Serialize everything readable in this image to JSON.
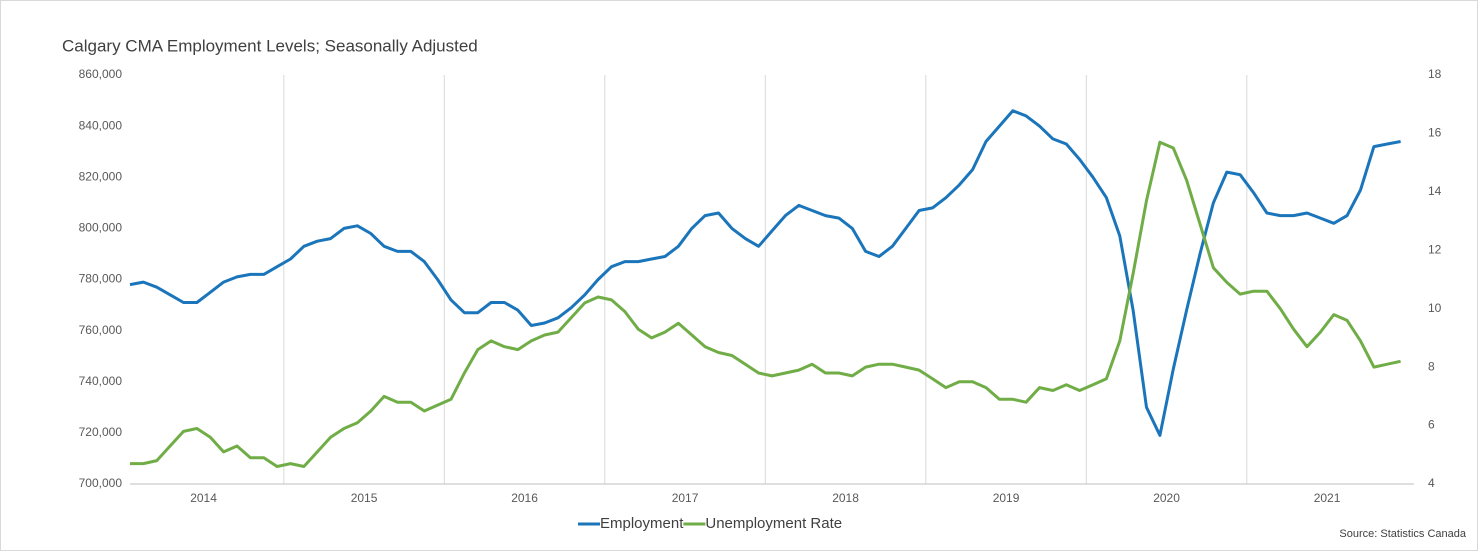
{
  "chart_data": {
    "type": "line",
    "title": "Calgary CMA Employment Levels; Seasonally Adjusted",
    "source": "Source: Statistics Canada",
    "categories": [
      "2014",
      null,
      null,
      null,
      null,
      null,
      null,
      null,
      null,
      null,
      null,
      null,
      "2015",
      null,
      null,
      null,
      null,
      null,
      null,
      null,
      null,
      null,
      null,
      null,
      "2016",
      null,
      null,
      null,
      null,
      null,
      null,
      null,
      null,
      null,
      null,
      null,
      "2017",
      null,
      null,
      null,
      null,
      null,
      null,
      null,
      null,
      null,
      null,
      null,
      "2018",
      null,
      null,
      null,
      null,
      null,
      null,
      null,
      null,
      null,
      null,
      null,
      "2019",
      null,
      null,
      null,
      null,
      null,
      null,
      null,
      null,
      null,
      null,
      null,
      "2020",
      null,
      null,
      null,
      null,
      null,
      null,
      null,
      null,
      null,
      null,
      null,
      "2021",
      null,
      null,
      null,
      null,
      null,
      null,
      null,
      null,
      null,
      null,
      null
    ],
    "series": [
      {
        "name": "Employment",
        "color": "#1b75bb",
        "values": [
          778000,
          779000,
          777000,
          774000,
          771000,
          771000,
          775000,
          779000,
          781000,
          782000,
          782000,
          785000,
          788000,
          793000,
          795000,
          796000,
          800000,
          801000,
          798000,
          793000,
          791000,
          791000,
          787000,
          780000,
          772000,
          767000,
          767000,
          771000,
          771000,
          768000,
          762000,
          763000,
          765000,
          769000,
          774000,
          780000,
          785000,
          787000,
          787000,
          788000,
          789000,
          793000,
          800000,
          805000,
          806000,
          800000,
          796000,
          793000,
          799000,
          805000,
          809000,
          807000,
          805000,
          804000,
          800000,
          791000,
          789000,
          793000,
          800000,
          807000,
          808000,
          812000,
          817000,
          823000,
          834000,
          840000,
          846000,
          844000,
          840000,
          835000,
          833000,
          827000,
          820000,
          812000,
          797000,
          768000,
          730000,
          719000,
          745000,
          768000,
          790000,
          810000,
          822000,
          821000,
          814000,
          806000,
          805000,
          805000,
          806000,
          804000,
          802000,
          805000,
          815000,
          832000,
          833000,
          834000
        ]
      },
      {
        "name": "Unemployment Rate",
        "color": "#70ad47",
        "axis": "y2",
        "values": [
          4.7,
          4.7,
          4.8,
          5.3,
          5.8,
          5.9,
          5.6,
          5.1,
          5.3,
          4.9,
          4.9,
          4.6,
          4.7,
          4.6,
          5.1,
          5.6,
          5.9,
          6.1,
          6.5,
          7.0,
          6.8,
          6.8,
          6.5,
          6.7,
          6.9,
          7.8,
          8.6,
          8.9,
          8.7,
          8.6,
          8.9,
          9.1,
          9.2,
          9.7,
          10.2,
          10.4,
          10.3,
          9.9,
          9.3,
          9.0,
          9.2,
          9.5,
          9.1,
          8.7,
          8.5,
          8.4,
          8.1,
          7.8,
          7.7,
          7.8,
          7.9,
          8.1,
          7.8,
          7.8,
          7.7,
          8.0,
          8.1,
          8.1,
          8.0,
          7.9,
          7.6,
          7.3,
          7.5,
          7.5,
          7.3,
          6.9,
          6.9,
          6.8,
          7.3,
          7.2,
          7.4,
          7.2,
          7.4,
          7.6,
          8.9,
          11.2,
          13.7,
          15.7,
          15.5,
          14.4,
          12.9,
          11.4,
          10.9,
          10.5,
          10.6,
          10.6,
          10.0,
          9.3,
          8.7,
          9.2,
          9.8,
          9.6,
          8.9,
          8.0,
          8.1,
          8.2
        ]
      }
    ],
    "ylim": [
      700000,
      860000
    ],
    "yticks": [
      {
        "value": 700000,
        "label": "700,000"
      },
      {
        "value": 720000,
        "label": "720,000"
      },
      {
        "value": 740000,
        "label": "740,000"
      },
      {
        "value": 760000,
        "label": "760,000"
      },
      {
        "value": 780000,
        "label": "780,000"
      },
      {
        "value": 800000,
        "label": "800,000"
      },
      {
        "value": 820000,
        "label": "820,000"
      },
      {
        "value": 840000,
        "label": "840,000"
      },
      {
        "value": 860000,
        "label": "860,000"
      }
    ],
    "y2lim": [
      4,
      18
    ],
    "y2ticks": [
      4,
      6,
      8,
      10,
      12,
      14,
      16,
      18
    ],
    "legend": "bottom"
  }
}
